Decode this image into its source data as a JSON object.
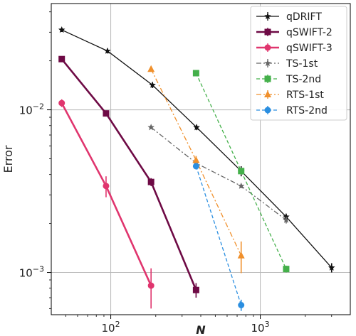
{
  "chart_data": {
    "type": "line",
    "xlabel": "N",
    "ylabel": "Error",
    "x_scale": "log",
    "y_scale": "log",
    "xlim": [
      40,
      4000
    ],
    "ylim": [
      0.00055,
      0.045
    ],
    "grid": true,
    "legend_position": "top-right",
    "x_ticks": [
      {
        "value": 100,
        "base": "10",
        "exp": "2"
      },
      {
        "value": 1000,
        "base": "10",
        "exp": "3"
      }
    ],
    "y_ticks": [
      {
        "value": 0.001,
        "base": "10",
        "exp": "−3"
      },
      {
        "value": 0.01,
        "base": "10",
        "exp": "−2"
      }
    ],
    "series": [
      {
        "name": "qDRIFT",
        "color": "#111111",
        "marker": "star",
        "line": "solid",
        "width": 1.3,
        "x": [
          47,
          95,
          190,
          375,
          745,
          1490,
          3000
        ],
        "y": [
          0.031,
          0.023,
          0.0142,
          0.0078,
          0.0042,
          0.0022,
          0.00107
        ],
        "err": [
          0.0009,
          0.0008,
          0.0006,
          0.0003,
          0.0003,
          0.0001,
          7e-05
        ]
      },
      {
        "name": "qSWIFT-2",
        "color": "#6e0a45",
        "marker": "square",
        "line": "solid",
        "width": 2.6,
        "x": [
          47,
          93,
          186,
          372
        ],
        "y": [
          0.0205,
          0.0095,
          0.0036,
          0.00078
        ],
        "err": [
          0.0006,
          0.0004,
          0.0002,
          8e-05
        ]
      },
      {
        "name": "qSWIFT-3",
        "color": "#e0356e",
        "marker": "circle",
        "line": "solid",
        "width": 2.6,
        "x": [
          47,
          93,
          186
        ],
        "y": [
          0.011,
          0.0034,
          0.00083
        ],
        "err": [
          0.0006,
          0.0005,
          0.00023
        ]
      },
      {
        "name": "TS-1st",
        "color": "#666666",
        "marker": "star",
        "line": "dashdot",
        "width": 1.3,
        "x": [
          186,
          372,
          745,
          1490
        ],
        "y": [
          0.0078,
          0.0047,
          0.0034,
          0.0021
        ],
        "err": [
          0.0001,
          0.0001,
          0.0001,
          0.0001
        ]
      },
      {
        "name": "TS-2nd",
        "color": "#44b04a",
        "marker": "square",
        "line": "dashed",
        "width": 1.3,
        "x": [
          372,
          745,
          1490
        ],
        "y": [
          0.0168,
          0.0042,
          0.00105
        ],
        "err": [
          0.0003,
          0.0002,
          5e-05
        ]
      },
      {
        "name": "RTS-1st",
        "color": "#f0902c",
        "marker": "triangle",
        "line": "dashdot",
        "width": 1.3,
        "x": [
          186,
          372,
          745
        ],
        "y": [
          0.0178,
          0.0049,
          0.00127
        ],
        "err": [
          0.0004,
          0.0003,
          0.00028
        ]
      },
      {
        "name": "RTS-2nd",
        "color": "#2a8ee0",
        "marker": "circle",
        "line": "dashed",
        "width": 1.3,
        "x": [
          372,
          745
        ],
        "y": [
          0.0045,
          0.00063
        ],
        "err": [
          0.0002,
          5e-05
        ]
      }
    ]
  }
}
